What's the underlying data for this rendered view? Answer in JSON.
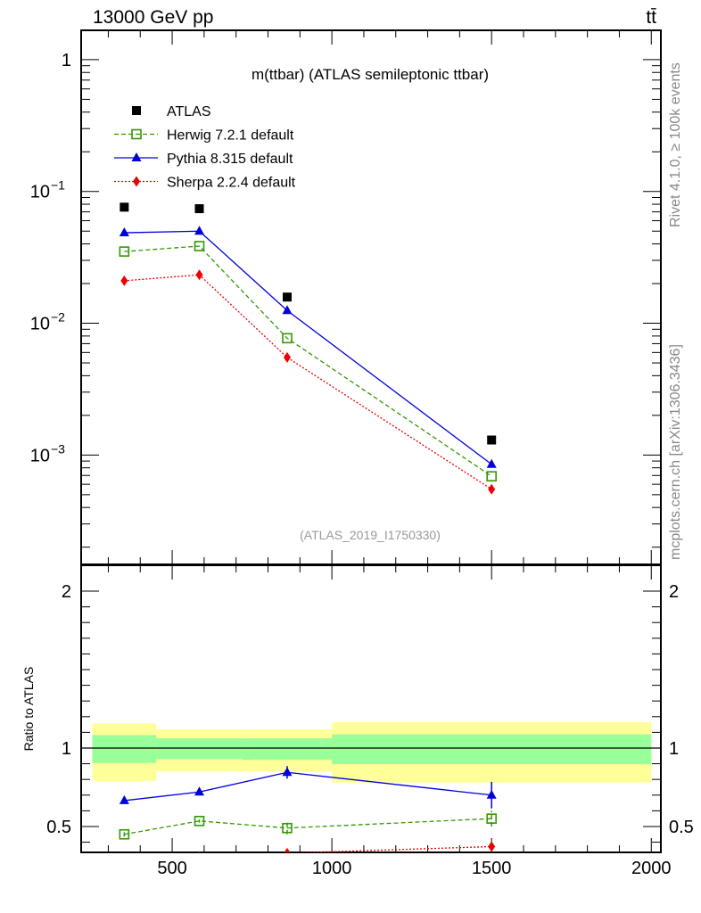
{
  "header": {
    "left": "13000 GeV pp",
    "right": "tt̄"
  },
  "side_text": {
    "rivet": "Rivet 4.1.0, ≥ 100k events",
    "mcplots": "mcplots.cern.ch [arXiv:1306.3436]"
  },
  "chart_data": [
    {
      "type": "line",
      "panel": "main",
      "title": "m(ttbar) (ATLAS semileptonic ttbar)",
      "analysis_id": "(ATLAS_2019_I1750330)",
      "yscale": "log",
      "xlim": [
        215,
        2030
      ],
      "ylim": [
        0.000148,
        1.67
      ],
      "y_ticks": [
        {
          "v": 1,
          "label": "1"
        },
        {
          "v": 0.1,
          "label": "10",
          "exp": "−1"
        },
        {
          "v": 0.01,
          "label": "10",
          "exp": "−2"
        },
        {
          "v": 0.001,
          "label": "10",
          "exp": "−3"
        }
      ],
      "x": [
        350,
        585,
        860,
        1500
      ],
      "legend_position": "top-left",
      "series": [
        {
          "name": "ATLAS",
          "marker": "square-filled",
          "color": "#000000",
          "line": "none",
          "values": [
            0.076,
            0.074,
            0.0158,
            0.0013
          ]
        },
        {
          "name": "Herwig 7.2.1 default",
          "marker": "square-open",
          "color": "#339900",
          "line": "dashed",
          "values": [
            0.035,
            0.0385,
            0.0077,
            0.00069
          ]
        },
        {
          "name": "Pythia 8.315 default",
          "marker": "triangle",
          "color": "#0000dd",
          "line": "solid",
          "values": [
            0.0486,
            0.05,
            0.0125,
            0.00085
          ]
        },
        {
          "name": "Sherpa 2.2.4 default",
          "marker": "diamond",
          "color": "#ee0000",
          "line": "dotted",
          "values": [
            0.021,
            0.0233,
            0.0055,
            0.00055
          ]
        }
      ]
    },
    {
      "type": "line",
      "panel": "ratio",
      "ylabel": "Ratio to ATLAS",
      "xlim": [
        215,
        2030
      ],
      "ylim": [
        0.335,
        2.165
      ],
      "x_ticks": [
        {
          "v": 500,
          "label": "500"
        },
        {
          "v": 1000,
          "label": "1000"
        },
        {
          "v": 1500,
          "label": "1500"
        },
        {
          "v": 2000,
          "label": "2000"
        }
      ],
      "y_ticks": [
        {
          "v": 0.5,
          "label": "0.5"
        },
        {
          "v": 1,
          "label": "1"
        },
        {
          "v": 2,
          "label": "2"
        }
      ],
      "bins": [
        250,
        450,
        720,
        1000,
        2000
      ],
      "band_outer": {
        "color": "#ffff99",
        "low": [
          0.79,
          0.85,
          0.85,
          0.78
        ],
        "high": [
          1.157,
          1.12,
          1.12,
          1.165
        ]
      },
      "band_inner": {
        "color": "#99ff99",
        "low": [
          0.905,
          0.93,
          0.925,
          0.897
        ],
        "high": [
          1.083,
          1.062,
          1.062,
          1.087
        ]
      },
      "x": [
        350,
        585,
        860,
        1500
      ],
      "series": [
        {
          "name": "Herwig 7.2.1 default",
          "marker": "square-open",
          "color": "#339900",
          "line": "dashed",
          "values": [
            0.45,
            0.535,
            0.49,
            0.55
          ],
          "err": [
            0.015,
            0.01,
            0.04,
            0.05
          ]
        },
        {
          "name": "Pythia 8.315 default",
          "marker": "triangle",
          "color": "#0000dd",
          "line": "solid",
          "values": [
            0.665,
            0.72,
            0.845,
            0.7
          ],
          "err": [
            0.02,
            0.015,
            0.04,
            0.085
          ]
        },
        {
          "name": "Sherpa 2.2.4 default",
          "marker": "diamond",
          "color": "#ee0000",
          "line": "dotted",
          "values": [
            0.28,
            0.31,
            0.33,
            0.372
          ],
          "err": [
            0.01,
            0.01,
            0.02,
            0.05
          ]
        }
      ]
    }
  ]
}
